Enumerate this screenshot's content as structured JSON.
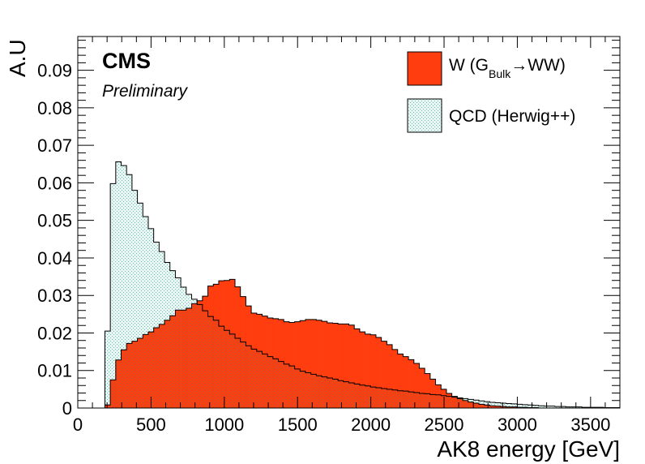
{
  "labels": {
    "cms": "CMS",
    "preliminary": "Preliminary",
    "legend_w_main": "W (G",
    "legend_w_sub": "Bulk",
    "legend_w_arrow": "→WW)",
    "legend_qcd": "QCD (Herwig++)"
  },
  "colors": {
    "signal_fill": "#ff3d0f",
    "background_fill": "#e8f6f3",
    "background_dots": "#72bfb1",
    "overlap_dots": "#7a6d50",
    "line": "#000000"
  },
  "chart_data": {
    "type": "area",
    "title": "",
    "xlabel": "AK8 energy [GeV]",
    "ylabel": "A.U",
    "xlim": [
      0,
      3700
    ],
    "ylim": [
      0,
      0.099
    ],
    "x_ticks": [
      0,
      500,
      1000,
      1500,
      2000,
      2500,
      3000,
      3500
    ],
    "x_tick_labels": [
      "0",
      "500",
      "1000",
      "1500",
      "2000",
      "2500",
      "3000",
      "3500"
    ],
    "y_ticks": [
      0,
      0.01,
      0.02,
      0.03,
      0.04,
      0.05,
      0.06,
      0.07,
      0.08,
      0.09
    ],
    "y_tick_labels": [
      "0",
      "0.01",
      "0.02",
      "0.03",
      "0.04",
      "0.05",
      "0.06",
      "0.07",
      "0.08",
      "0.09"
    ],
    "bin_width": 37,
    "legend_position": "top-right",
    "series": [
      {
        "name": "W (GBulk→WW)",
        "style": "filled",
        "bins": [
          [
            185,
            0.0008
          ],
          [
            222,
            0.0075
          ],
          [
            259,
            0.0128
          ],
          [
            296,
            0.0155
          ],
          [
            333,
            0.0172
          ],
          [
            370,
            0.0178
          ],
          [
            407,
            0.0186
          ],
          [
            444,
            0.0196
          ],
          [
            481,
            0.0203
          ],
          [
            518,
            0.0214
          ],
          [
            555,
            0.0223
          ],
          [
            592,
            0.0234
          ],
          [
            629,
            0.0246
          ],
          [
            666,
            0.0261
          ],
          [
            703,
            0.0261
          ],
          [
            740,
            0.0266
          ],
          [
            777,
            0.0278
          ],
          [
            814,
            0.0286
          ],
          [
            851,
            0.0298
          ],
          [
            888,
            0.0325
          ],
          [
            925,
            0.033
          ],
          [
            962,
            0.0339
          ],
          [
            999,
            0.034
          ],
          [
            1036,
            0.0343
          ],
          [
            1073,
            0.0323
          ],
          [
            1110,
            0.0297
          ],
          [
            1147,
            0.0272
          ],
          [
            1184,
            0.0253
          ],
          [
            1221,
            0.025
          ],
          [
            1258,
            0.0245
          ],
          [
            1295,
            0.024
          ],
          [
            1332,
            0.0238
          ],
          [
            1369,
            0.0236
          ],
          [
            1406,
            0.023
          ],
          [
            1443,
            0.0228
          ],
          [
            1480,
            0.023
          ],
          [
            1517,
            0.0233
          ],
          [
            1554,
            0.0236
          ],
          [
            1591,
            0.0236
          ],
          [
            1628,
            0.0234
          ],
          [
            1665,
            0.0231
          ],
          [
            1702,
            0.0227
          ],
          [
            1739,
            0.0226
          ],
          [
            1776,
            0.0224
          ],
          [
            1813,
            0.0224
          ],
          [
            1850,
            0.0221
          ],
          [
            1887,
            0.0211
          ],
          [
            1924,
            0.0203
          ],
          [
            1961,
            0.0197
          ],
          [
            1998,
            0.0195
          ],
          [
            2035,
            0.0188
          ],
          [
            2072,
            0.0178
          ],
          [
            2109,
            0.0169
          ],
          [
            2146,
            0.0156
          ],
          [
            2183,
            0.0144
          ],
          [
            2220,
            0.0137
          ],
          [
            2257,
            0.0129
          ],
          [
            2294,
            0.0119
          ],
          [
            2331,
            0.0106
          ],
          [
            2368,
            0.0092
          ],
          [
            2405,
            0.0077
          ],
          [
            2442,
            0.0062
          ],
          [
            2479,
            0.005
          ],
          [
            2516,
            0.0039
          ],
          [
            2553,
            0.0031
          ],
          [
            2590,
            0.0025
          ],
          [
            2627,
            0.002
          ],
          [
            2664,
            0.0016
          ],
          [
            2701,
            0.0013
          ],
          [
            2738,
            0.001
          ],
          [
            2775,
            0.0008
          ],
          [
            2812,
            0.0006
          ],
          [
            2849,
            0.0005
          ],
          [
            2886,
            0.0004
          ],
          [
            2923,
            0.0003
          ],
          [
            2960,
            0.0003
          ],
          [
            2997,
            0.0002
          ],
          [
            3034,
            0.0002
          ],
          [
            3071,
            0.0001
          ],
          [
            3108,
            0.0001
          ]
        ]
      },
      {
        "name": "QCD (Herwig++)",
        "style": "hatched",
        "bins": [
          [
            185,
            0.0205
          ],
          [
            222,
            0.0598
          ],
          [
            259,
            0.0656
          ],
          [
            296,
            0.0646
          ],
          [
            333,
            0.0622
          ],
          [
            370,
            0.058
          ],
          [
            407,
            0.0546
          ],
          [
            444,
            0.051
          ],
          [
            481,
            0.0478
          ],
          [
            518,
            0.0442
          ],
          [
            555,
            0.0417
          ],
          [
            592,
            0.0388
          ],
          [
            629,
            0.0366
          ],
          [
            666,
            0.0347
          ],
          [
            703,
            0.0322
          ],
          [
            740,
            0.0303
          ],
          [
            777,
            0.029
          ],
          [
            814,
            0.0276
          ],
          [
            851,
            0.0259
          ],
          [
            888,
            0.0244
          ],
          [
            925,
            0.0234
          ],
          [
            962,
            0.0218
          ],
          [
            999,
            0.0207
          ],
          [
            1036,
            0.0197
          ],
          [
            1073,
            0.0186
          ],
          [
            1110,
            0.0176
          ],
          [
            1147,
            0.0166
          ],
          [
            1184,
            0.0157
          ],
          [
            1221,
            0.0151
          ],
          [
            1258,
            0.0144
          ],
          [
            1295,
            0.0137
          ],
          [
            1332,
            0.0131
          ],
          [
            1369,
            0.0124
          ],
          [
            1406,
            0.0117
          ],
          [
            1443,
            0.0112
          ],
          [
            1480,
            0.0104
          ],
          [
            1517,
            0.0098
          ],
          [
            1554,
            0.0094
          ],
          [
            1591,
            0.009
          ],
          [
            1628,
            0.0086
          ],
          [
            1665,
            0.0083
          ],
          [
            1702,
            0.008
          ],
          [
            1739,
            0.0077
          ],
          [
            1776,
            0.0073
          ],
          [
            1813,
            0.007
          ],
          [
            1850,
            0.0067
          ],
          [
            1887,
            0.0064
          ],
          [
            1924,
            0.0061
          ],
          [
            1961,
            0.0059
          ],
          [
            1998,
            0.0056
          ],
          [
            2035,
            0.0054
          ],
          [
            2072,
            0.0052
          ],
          [
            2109,
            0.005
          ],
          [
            2146,
            0.0048
          ],
          [
            2183,
            0.0046
          ],
          [
            2220,
            0.0045
          ],
          [
            2257,
            0.0043
          ],
          [
            2294,
            0.0041
          ],
          [
            2331,
            0.0039
          ],
          [
            2368,
            0.0038
          ],
          [
            2405,
            0.0036
          ],
          [
            2442,
            0.0035
          ],
          [
            2479,
            0.0033
          ],
          [
            2516,
            0.0031
          ],
          [
            2553,
            0.0029
          ],
          [
            2590,
            0.0027
          ],
          [
            2627,
            0.0025
          ],
          [
            2664,
            0.0023
          ],
          [
            2701,
            0.0021
          ],
          [
            2738,
            0.0019
          ],
          [
            2775,
            0.0017
          ],
          [
            2812,
            0.0015
          ],
          [
            2849,
            0.0014
          ],
          [
            2886,
            0.0013
          ],
          [
            2923,
            0.0012
          ],
          [
            2960,
            0.0011
          ],
          [
            2997,
            0.001
          ],
          [
            3034,
            0.0009
          ],
          [
            3071,
            0.0008
          ],
          [
            3108,
            0.0007
          ],
          [
            3145,
            0.0006
          ],
          [
            3182,
            0.0005
          ],
          [
            3219,
            0.0005
          ],
          [
            3256,
            0.0004
          ],
          [
            3293,
            0.0004
          ],
          [
            3330,
            0.0003
          ],
          [
            3367,
            0.0003
          ],
          [
            3404,
            0.0003
          ],
          [
            3441,
            0.0002
          ],
          [
            3478,
            0.0002
          ],
          [
            3515,
            0.0002
          ],
          [
            3552,
            0.0002
          ],
          [
            3589,
            0.0001
          ],
          [
            3626,
            0.0001
          ],
          [
            3663,
            0.0001
          ]
        ]
      }
    ]
  }
}
